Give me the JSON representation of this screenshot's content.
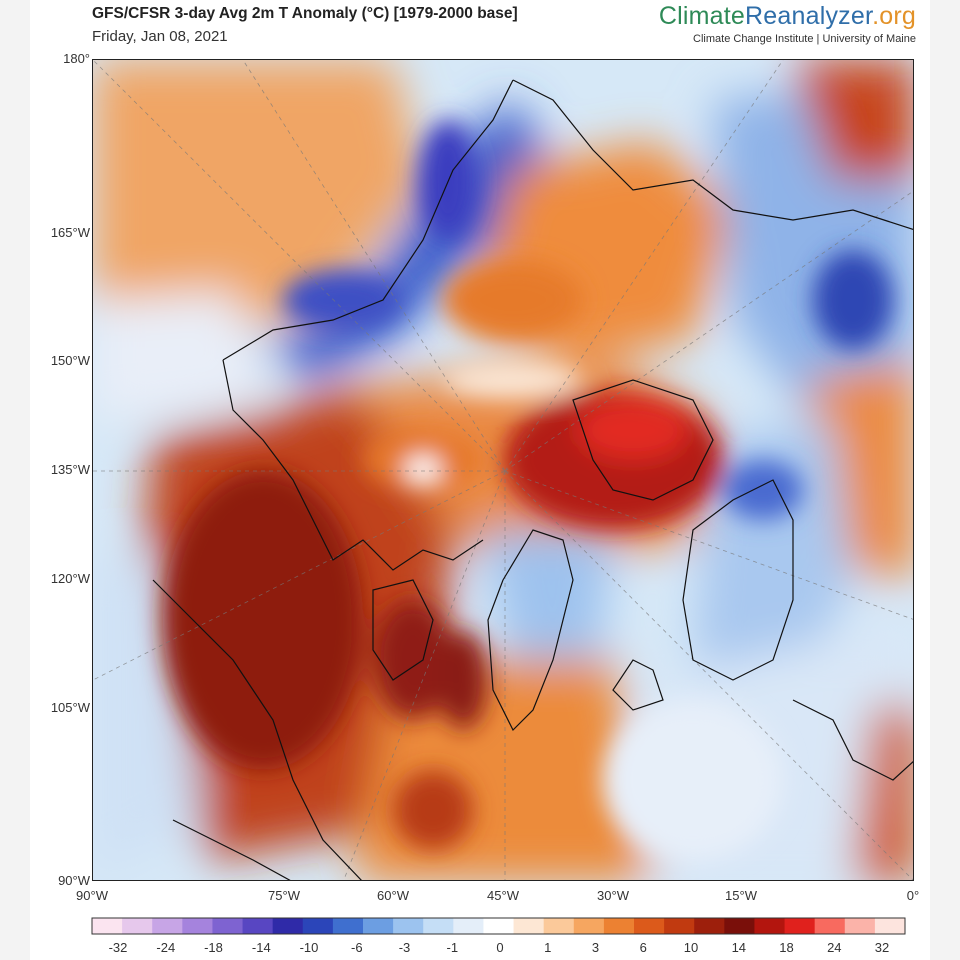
{
  "header": {
    "title": "GFS/CFSR 3-day Avg 2m T Anomaly (°C) [1979-2000 base]",
    "date": "Friday, Jan 08, 2021"
  },
  "brand": {
    "part1": "Climate",
    "part2": "Reanalyzer",
    "part3": ".org",
    "affiliation": "Climate Change Institute | University of Maine",
    "colors": {
      "climate": "#2e8a57",
      "reanalyzer": "#2f6ea9",
      "org": "#e39228"
    }
  },
  "axes": {
    "left_ticks": [
      "180°",
      "165°W",
      "150°W",
      "135°W",
      "120°W",
      "105°W",
      "90°W"
    ],
    "bottom_ticks": [
      "90°W",
      "75°W",
      "60°W",
      "45°W",
      "30°W",
      "15°W",
      "0°"
    ]
  },
  "colorbar": {
    "labels": [
      "-32",
      "-24",
      "-18",
      "-14",
      "-10",
      "-6",
      "-3",
      "-1",
      "0",
      "1",
      "3",
      "6",
      "10",
      "14",
      "18",
      "24",
      "32"
    ],
    "colors": [
      "#fbe4f0",
      "#e6c8ec",
      "#c7a5e6",
      "#a583dd",
      "#7e63d1",
      "#5846c2",
      "#2f2aa8",
      "#2b45b9",
      "#3f6fcf",
      "#6c9ee2",
      "#9cc3ef",
      "#c5def6",
      "#e4eef9",
      "#ffffff",
      "#fde7d4",
      "#fbc99a",
      "#f6a660",
      "#ec8132",
      "#dc5a1b",
      "#c13a10",
      "#9d1f0c",
      "#7a0f0a",
      "#b3150e",
      "#e0211d",
      "#f86a5f",
      "#fbb3a9",
      "#fde4de"
    ]
  },
  "map": {
    "ocean_color": "#d6e8f7",
    "features": [
      "arctic-ocean",
      "greenland",
      "canadian-archipelago",
      "north-america",
      "siberia",
      "scandinavia",
      "alaska"
    ]
  }
}
